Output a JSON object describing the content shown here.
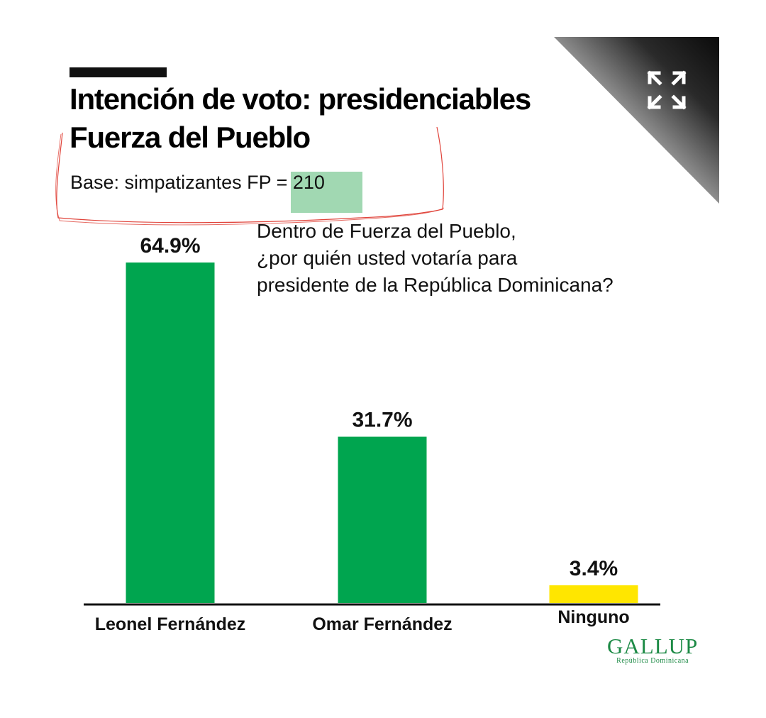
{
  "header": {
    "title_line1": "Intención de voto: presidenciables",
    "title_line2": "Fuerza del Pueblo",
    "subtitle": "Base: simpatizantes FP = 210",
    "question_lines": [
      "Dentro de Fuerza del Pueblo,",
      "¿por quién usted votaría para",
      "presidente de la República Dominicana?"
    ]
  },
  "logo": {
    "name": "GALLUP",
    "sub": "República Dominicana"
  },
  "colors": {
    "green": "#00a54f",
    "yellow": "#ffe600",
    "dark": "#111111",
    "annotation": "#e0433a"
  },
  "icons": {
    "expand": "expand-arrows-icon"
  },
  "chart_data": {
    "type": "bar",
    "title": "Intención de voto: presidenciables Fuerza del Pueblo",
    "categories": [
      "Leonel Fernández",
      "Omar Fernández",
      "Ninguno"
    ],
    "values": [
      64.9,
      31.7,
      3.4
    ],
    "value_labels": [
      "64.9%",
      "31.7%",
      "3.4%"
    ],
    "bar_colors": [
      "#00a54f",
      "#00a54f",
      "#ffe600"
    ],
    "ylim": [
      0,
      64.9
    ],
    "grid": false,
    "legend": "none"
  }
}
